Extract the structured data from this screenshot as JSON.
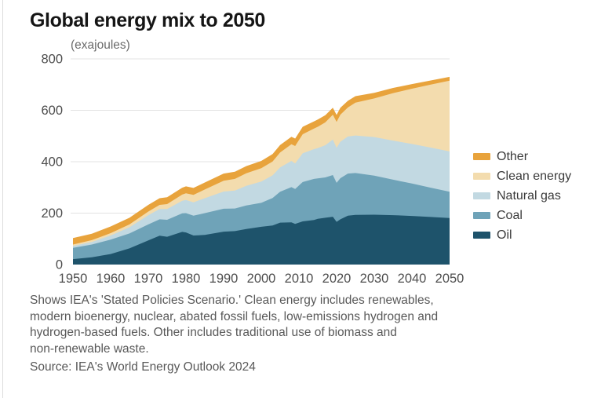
{
  "header": {
    "title": "Global energy mix to 2050",
    "units_label": "(exajoules)"
  },
  "legend": {
    "items": [
      {
        "label": "Other",
        "color": "#E8A33C"
      },
      {
        "label": "Clean energy",
        "color": "#F3DCAE"
      },
      {
        "label": "Natural gas",
        "color": "#C2D9E2"
      },
      {
        "label": "Coal",
        "color": "#6FA3B8"
      },
      {
        "label": "Oil",
        "color": "#1E536B"
      }
    ]
  },
  "chart_data": {
    "type": "area",
    "stacked": true,
    "title": "Global energy mix to 2050",
    "unit": "exajoules",
    "xlabel": "",
    "ylabel": "(exajoules)",
    "xlim": [
      1950,
      2050
    ],
    "ylim": [
      0,
      800
    ],
    "xticks": [
      1950,
      1960,
      1970,
      1980,
      1990,
      2000,
      2010,
      2020,
      2030,
      2040,
      2050
    ],
    "yticks": [
      0,
      200,
      400,
      600,
      800
    ],
    "grid": "horizontal",
    "legend_position": "right",
    "x": [
      1950,
      1955,
      1960,
      1965,
      1970,
      1973,
      1975,
      1979,
      1980,
      1982,
      1985,
      1990,
      1993,
      1996,
      2000,
      2003,
      2005,
      2008,
      2009,
      2011,
      2014,
      2015,
      2017,
      2019,
      2020,
      2021,
      2023,
      2025,
      2030,
      2035,
      2040,
      2045,
      2050
    ],
    "series": [
      {
        "name": "Oil",
        "color": "#1E536B",
        "values": [
          21,
          28,
          41,
          63,
          94,
          112,
          108,
          127,
          125,
          113,
          115,
          128,
          130,
          138,
          147,
          152,
          163,
          164,
          158,
          168,
          173,
          178,
          182,
          186,
          166,
          176,
          190,
          193,
          194,
          192,
          189,
          185,
          181
        ]
      },
      {
        "name": "Coal",
        "color": "#6FA3B8",
        "values": [
          44,
          50,
          56,
          58,
          62,
          64,
          66,
          72,
          75,
          77,
          85,
          89,
          88,
          92,
          93,
          107,
          120,
          137,
          136,
          153,
          160,
          157,
          157,
          162,
          152,
          160,
          164,
          163,
          152,
          138,
          126,
          114,
          102
        ]
      },
      {
        "name": "Natural gas",
        "color": "#C2D9E2",
        "values": [
          7,
          10,
          16,
          24,
          36,
          40,
          42,
          49,
          51,
          52,
          58,
          67,
          70,
          76,
          83,
          88,
          95,
          102,
          99,
          112,
          116,
          118,
          125,
          138,
          136,
          142,
          144,
          146,
          150,
          152,
          154,
          156,
          157
        ]
      },
      {
        "name": "Clean energy",
        "color": "#F3DCAE",
        "values": [
          6,
          7,
          9,
          11,
          14,
          16,
          19,
          24,
          26,
          29,
          34,
          42,
          45,
          49,
          52,
          54,
          58,
          65,
          68,
          74,
          80,
          83,
          89,
          97,
          101,
          105,
          113,
          128,
          150,
          185,
          215,
          245,
          275
        ]
      },
      {
        "name": "Other",
        "color": "#E8A33C",
        "values": [
          25,
          25,
          26,
          26,
          26,
          26,
          27,
          27,
          27,
          27,
          27,
          28,
          28,
          28,
          28,
          29,
          29,
          29,
          29,
          29,
          28,
          28,
          28,
          27,
          27,
          27,
          26,
          25,
          22,
          20,
          18,
          16,
          15
        ]
      }
    ]
  },
  "footnote_lines": {
    "line1": "Shows IEA's 'Stated Policies Scenario.' Clean energy includes renewables,",
    "line2": "modern bioenergy, nuclear, abated fossil fuels, low-emissions hydrogen and",
    "line3": "hydrogen-based fuels. Other includes traditional use of biomass and",
    "line4": "non-renewable waste."
  },
  "footer": {
    "source": "Source: IEA's World Energy Outlook 2024"
  }
}
